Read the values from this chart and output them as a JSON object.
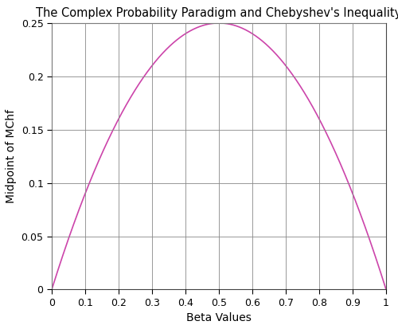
{
  "title": "The Complex Probability Paradigm and Chebyshev's Inequality",
  "xlabel": "Beta Values",
  "ylabel": "Midpoint of MChf",
  "xlim": [
    0,
    1
  ],
  "ylim": [
    0,
    0.25
  ],
  "xticks": [
    0,
    0.1,
    0.2,
    0.3,
    0.4,
    0.5,
    0.6,
    0.7,
    0.8,
    0.9,
    1
  ],
  "yticks": [
    0,
    0.05,
    0.1,
    0.15,
    0.2,
    0.25
  ],
  "line_color": "#CC44AA",
  "line_width": 1.2,
  "grid_color": "#888888",
  "background_color": "#ffffff",
  "title_fontsize": 10.5,
  "axis_label_fontsize": 10,
  "tick_fontsize": 9
}
